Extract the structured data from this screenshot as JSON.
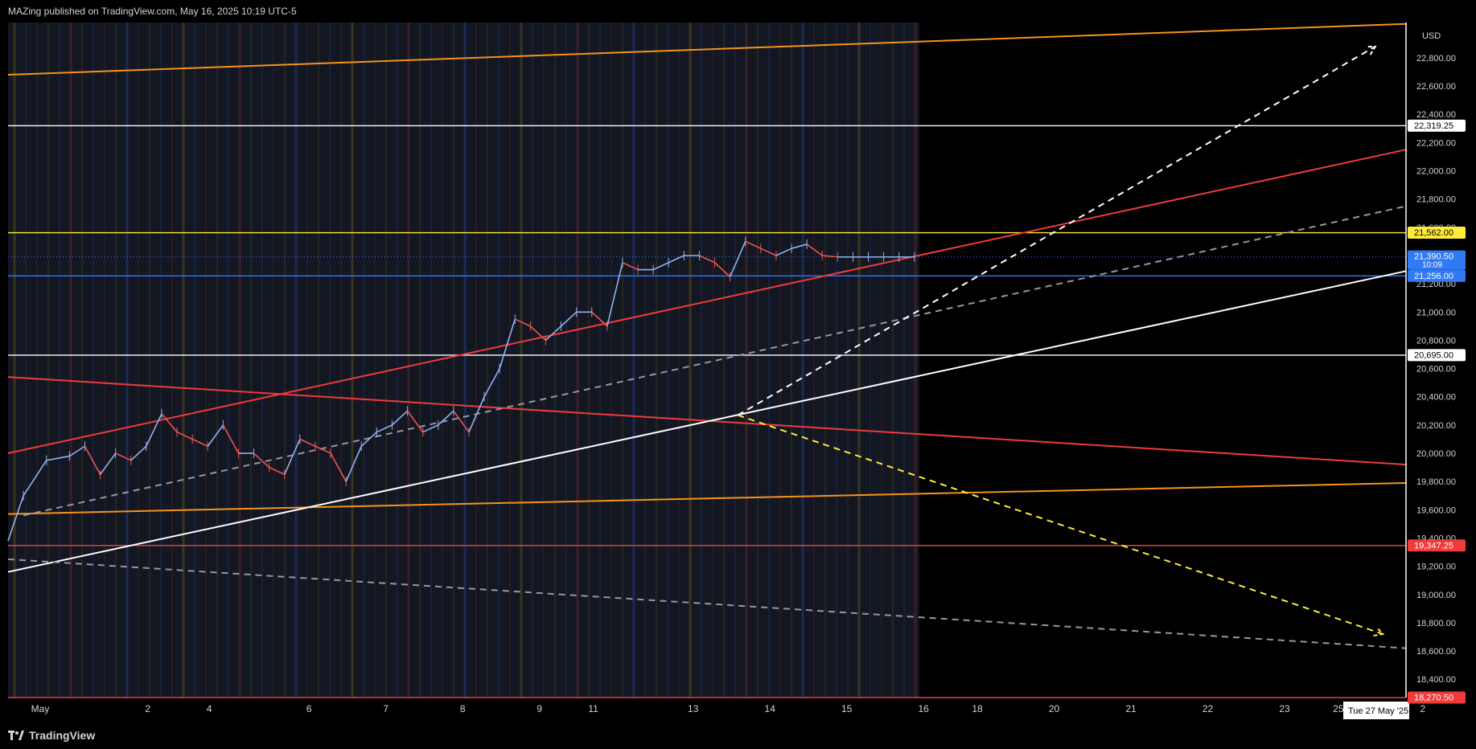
{
  "header": {
    "publisher_text": "MAZing published on TradingView.com, May 16, 2025 10:19 UTC-5"
  },
  "footer": {
    "brand": "TradingView"
  },
  "colors": {
    "background": "#000000",
    "session_bg": "#131722",
    "orange": "#f7931a",
    "red": "#ef3b3b",
    "white": "#ffffff",
    "blue": "#3179f5",
    "yellow": "#ffeb3b",
    "grey": "#9598a1",
    "candle_up": "#8fb3f0",
    "candle_down": "#ef5350"
  },
  "chart_data": {
    "type": "line",
    "symbol_currency": "USD",
    "ylim": [
      18270.5,
      23050
    ],
    "yticks": [
      18400,
      18600,
      18800,
      19000,
      19200,
      19400,
      19600,
      19800,
      20000,
      20200,
      20400,
      20600,
      20800,
      21000,
      21200,
      21400,
      21600,
      21800,
      22000,
      22200,
      22400,
      22600,
      22800
    ],
    "ytick_labels": [
      "18,400.00",
      "18,600.00",
      "18,800.00",
      "19,000.00",
      "19,200.00",
      "19,400.00",
      "19,600.00",
      "19,800.00",
      "20,000.00",
      "20,200.00",
      "20,400.00",
      "20,600.00",
      "20,800.00",
      "21,000.00",
      "21,200.00",
      "21,400.00",
      "21,600.00",
      "21,800.00",
      "22,000.00",
      "22,200.00",
      "22,400.00",
      "22,600.00",
      "22,800.00"
    ],
    "xtick_labels": [
      "May",
      "2",
      "4",
      "6",
      "7",
      "8",
      "9",
      "11",
      "13",
      "14",
      "15",
      "16",
      "18",
      "20",
      "21",
      "22",
      "23",
      "25",
      "2"
    ],
    "xtick_x_index": [
      0,
      1.4,
      2.2,
      3.5,
      4.5,
      5.5,
      6.5,
      7.2,
      8.5,
      9.5,
      10.5,
      11.5,
      12.2,
      13.2,
      14.2,
      15.2,
      16.2,
      16.9,
      18.0
    ],
    "crosshair_date_label": "Tue 27 May '25",
    "horizontal_levels": [
      {
        "value": 22319.25,
        "label": "22,319.25",
        "color": "#ffffff",
        "text_color": "#000000"
      },
      {
        "value": 21562.0,
        "label": "21,562.00",
        "color": "#ffeb3b",
        "text_color": "#000000"
      },
      {
        "value": 21390.5,
        "label": "21,390.50",
        "sublabel": "10:09",
        "color": "#3179f5",
        "text_color": "#ffffff"
      },
      {
        "value": 21256.0,
        "label": "21,256.00",
        "color": "#3179f5",
        "text_color": "#ffffff"
      },
      {
        "value": 20695.0,
        "label": "20,695.00",
        "color": "#ffffff",
        "text_color": "#000000"
      },
      {
        "value": 19347.25,
        "label": "19,347.25",
        "color": "#ef3b3b",
        "text_color": "#ffffff"
      },
      {
        "value": 18270.5,
        "label": "18,270.50",
        "color": "#ef3b3b",
        "text_color": "#ffffff"
      }
    ],
    "trendlines": [
      {
        "name": "orange-upper-channel",
        "color": "#f7931a",
        "style": "solid",
        "from": [
          0,
          22680
        ],
        "to": [
          18.2,
          23040
        ]
      },
      {
        "name": "orange-lower-channel",
        "color": "#f7931a",
        "style": "solid",
        "from": [
          0,
          19570
        ],
        "to": [
          18.2,
          19790
        ]
      },
      {
        "name": "red-rising",
        "color": "#ef3b3b",
        "style": "solid",
        "from": [
          0,
          20000
        ],
        "to": [
          18.2,
          22150
        ]
      },
      {
        "name": "red-falling",
        "color": "#ef3b3b",
        "style": "solid",
        "from": [
          0,
          20540
        ],
        "to": [
          18.2,
          19920
        ]
      },
      {
        "name": "white-rising",
        "color": "#ffffff",
        "style": "solid",
        "from": [
          0,
          19160
        ],
        "to": [
          18.2,
          21290
        ]
      },
      {
        "name": "grey-dashed-upper",
        "color": "#9598a1",
        "style": "dashed",
        "from": [
          0.2,
          19560
        ],
        "to": [
          18.2,
          21750
        ]
      },
      {
        "name": "grey-dashed-lower",
        "color": "#9598a1",
        "style": "dashed",
        "from": [
          0,
          19250
        ],
        "to": [
          18.2,
          18620
        ]
      },
      {
        "name": "white-dashed-projection",
        "color": "#ffffff",
        "style": "dashed_arrow",
        "from": [
          9.5,
          20270
        ],
        "to": [
          17.8,
          22880
        ]
      },
      {
        "name": "yellow-dashed-projection",
        "color": "#ffeb3b",
        "style": "dashed_arrow",
        "from": [
          9.5,
          20270
        ],
        "to": [
          17.9,
          18720
        ]
      }
    ],
    "price_path": {
      "x_index": [
        0,
        0.2,
        0.5,
        0.8,
        1.0,
        1.2,
        1.4,
        1.6,
        1.8,
        2.0,
        2.2,
        2.4,
        2.6,
        2.8,
        3.0,
        3.2,
        3.4,
        3.6,
        3.8,
        4.0,
        4.2,
        4.4,
        4.6,
        4.8,
        5.0,
        5.2,
        5.4,
        5.6,
        5.8,
        6.0,
        6.2,
        6.4,
        6.6,
        6.8,
        7.0,
        7.2,
        7.4,
        7.6,
        7.8,
        8.0,
        8.2,
        8.4,
        8.6,
        8.8,
        9.0,
        9.2,
        9.4,
        9.6,
        9.8,
        10.0,
        10.2,
        10.4,
        10.6,
        10.8,
        11.0,
        11.2,
        11.4,
        11.6,
        11.8
      ],
      "y": [
        19380,
        19700,
        19950,
        19980,
        20050,
        19850,
        20000,
        19950,
        20050,
        20280,
        20150,
        20100,
        20050,
        20200,
        20000,
        20000,
        19900,
        19850,
        20100,
        20050,
        20000,
        19800,
        20050,
        20150,
        20200,
        20300,
        20150,
        20200,
        20300,
        20150,
        20400,
        20600,
        20950,
        20900,
        20800,
        20900,
        21000,
        21000,
        20900,
        21350,
        21300,
        21300,
        21350,
        21400,
        21400,
        21350,
        21250,
        21500,
        21450,
        21400,
        21450,
        21480,
        21400,
        21390,
        21390,
        21390,
        21390,
        21390,
        21390
      ],
      "note_gap_after_index": 33
    }
  }
}
